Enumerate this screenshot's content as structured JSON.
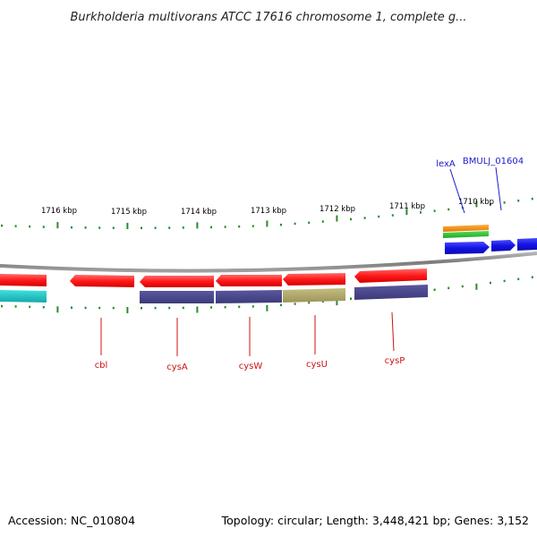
{
  "title": "Burkholderia multivorans ATCC 17616 chromosome 1, complete g...",
  "footer": {
    "accession": "Accession: NC_010804",
    "summary": "Topology: circular; Length: 3,448,421 bp; Genes: 3,152"
  },
  "scale_labels": [
    "1716 kbp",
    "1715 kbp",
    "1714 kbp",
    "1713 kbp",
    "1712 kbp",
    "1711 kbp",
    "1710 kbp"
  ],
  "gene_labels": [
    {
      "name": "lexA",
      "color": "#1a1acc"
    },
    {
      "name": "BMULJ_01604",
      "color": "#1a1acc"
    },
    {
      "name": "cbl",
      "color": "#cc1111"
    },
    {
      "name": "cysA",
      "color": "#cc1111"
    },
    {
      "name": "cysW",
      "color": "#cc1111"
    },
    {
      "name": "cysU",
      "color": "#cc1111"
    },
    {
      "name": "cysP",
      "color": "#cc1111"
    }
  ],
  "colors": {
    "reverse_gene": "#ff1a1a",
    "forward_gene": "#1414e6",
    "cog_purple": "#47448a",
    "cog_olive": "#b0a86a",
    "cog_teal": "#1fc8c8",
    "cog_orange": "#ff9a1a",
    "cog_green": "#33cc33",
    "ticks": "#2a8a2a",
    "backbone": "#8a8a8a"
  }
}
